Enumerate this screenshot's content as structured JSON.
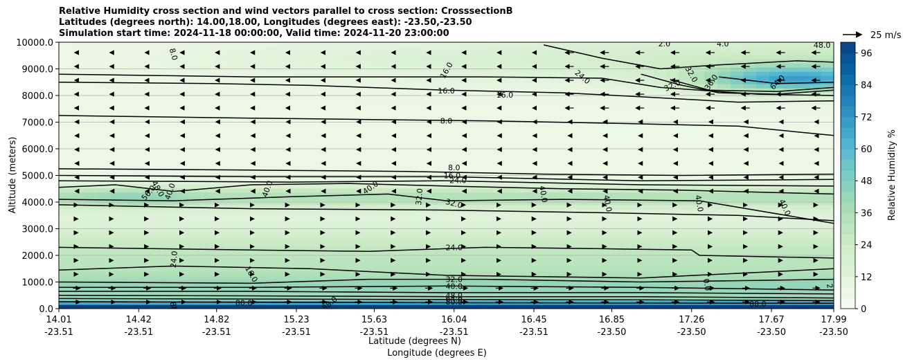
{
  "chart_data": {
    "type": "heatmap",
    "title_lines": [
      "Relative Humidity cross section and wind vectors parallel to cross section: CrosssectionB",
      "Latitudes (degrees north): 14.00,18.00, Longitudes (degrees east): -23.50,-23.50",
      "Simulation start time: 2024-11-18 00:00:00, Valid time: 2024-11-20 23:00:00"
    ],
    "ylabel": "Altitude (meters)",
    "xlabel": "Latitude (degrees N)",
    "xlabel2": "Longitude (degrees E)",
    "ylim": [
      0,
      10000
    ],
    "yticks": [
      "0.0",
      "1000.0",
      "2000.0",
      "3000.0",
      "4000.0",
      "5000.0",
      "6000.0",
      "7000.0",
      "8000.0",
      "9000.0",
      "10000.0"
    ],
    "xlim": [
      14.01,
      17.99
    ],
    "xticks": [
      {
        "lat": "14.01",
        "lon": "-23.51"
      },
      {
        "lat": "14.42",
        "lon": "-23.51"
      },
      {
        "lat": "14.82",
        "lon": "-23.51"
      },
      {
        "lat": "15.23",
        "lon": "-23.51"
      },
      {
        "lat": "15.63",
        "lon": "-23.51"
      },
      {
        "lat": "16.04",
        "lon": "-23.51"
      },
      {
        "lat": "16.45",
        "lon": "-23.51"
      },
      {
        "lat": "16.85",
        "lon": "-23.50"
      },
      {
        "lat": "17.26",
        "lon": "-23.50"
      },
      {
        "lat": "17.67",
        "lon": "-23.50"
      },
      {
        "lat": "17.99",
        "lon": "-23.50"
      }
    ],
    "colorbar": {
      "label": "Relative Humidity %",
      "range": [
        0,
        100
      ],
      "ticks": [
        "0",
        "12",
        "24",
        "36",
        "48",
        "60",
        "72",
        "84",
        "96"
      ],
      "colors": [
        "#f7fcf0",
        "#e0f3db",
        "#ccebc5",
        "#a8ddb5",
        "#7bccc4",
        "#4eb3d3",
        "#2b8cbe",
        "#0868ac",
        "#084081"
      ]
    },
    "wind_key": {
      "label": "25 m/s"
    },
    "contour_labels": [
      {
        "text": "8.0",
        "lat": 14.6,
        "alt": 9550,
        "rot": 75
      },
      {
        "text": "16.0",
        "lat": 16.0,
        "alt": 8950,
        "rot": -60
      },
      {
        "text": "16.0",
        "lat": 16.0,
        "alt": 8180,
        "rot": 0
      },
      {
        "text": "16.0",
        "lat": 16.3,
        "alt": 8020,
        "rot": 0
      },
      {
        "text": "24.0",
        "lat": 16.7,
        "alt": 8700,
        "rot": 40
      },
      {
        "text": "32.0",
        "lat": 17.16,
        "alt": 8380,
        "rot": -25
      },
      {
        "text": "32.0",
        "lat": 17.26,
        "alt": 8800,
        "rot": 60
      },
      {
        "text": "36.0",
        "lat": 17.36,
        "alt": 8500,
        "rot": -55
      },
      {
        "text": "64.0",
        "lat": 17.7,
        "alt": 8500,
        "rot": -45
      },
      {
        "text": "2.0",
        "lat": 17.12,
        "alt": 9950,
        "rot": 0
      },
      {
        "text": "4.0",
        "lat": 17.42,
        "alt": 9950,
        "rot": 0
      },
      {
        "text": "48.0",
        "lat": 17.93,
        "alt": 9900,
        "rot": 0
      },
      {
        "text": "8.0",
        "lat": 16.0,
        "alt": 7050,
        "rot": 0
      },
      {
        "text": "8.0",
        "lat": 16.04,
        "alt": 5300,
        "rot": 0
      },
      {
        "text": "16.0",
        "lat": 16.03,
        "alt": 5000,
        "rot": 0
      },
      {
        "text": "24.0",
        "lat": 16.06,
        "alt": 4820,
        "rot": 0
      },
      {
        "text": "40.0",
        "lat": 14.58,
        "alt": 4400,
        "rot": -70
      },
      {
        "text": "56.0",
        "lat": 14.47,
        "alt": 4350,
        "rot": -50
      },
      {
        "text": "48.0",
        "lat": 14.52,
        "alt": 4500,
        "rot": 60
      },
      {
        "text": "40.0",
        "lat": 15.08,
        "alt": 4500,
        "rot": -70
      },
      {
        "text": "40.0",
        "lat": 15.61,
        "alt": 4550,
        "rot": -35
      },
      {
        "text": "32.0",
        "lat": 15.86,
        "alt": 4200,
        "rot": -85
      },
      {
        "text": "32.0",
        "lat": 16.04,
        "alt": 3950,
        "rot": 15
      },
      {
        "text": "40.0",
        "lat": 16.5,
        "alt": 4300,
        "rot": 80
      },
      {
        "text": "40.0",
        "lat": 16.83,
        "alt": 3950,
        "rot": 80
      },
      {
        "text": "40.0",
        "lat": 17.3,
        "alt": 3950,
        "rot": 80
      },
      {
        "text": "40.0",
        "lat": 17.74,
        "alt": 3800,
        "rot": 65
      },
      {
        "text": "24.0",
        "lat": 14.6,
        "alt": 1850,
        "rot": -85
      },
      {
        "text": "24.0",
        "lat": 16.04,
        "alt": 2300,
        "rot": 0
      },
      {
        "text": "32.0",
        "lat": 16.04,
        "alt": 1100,
        "rot": 0
      },
      {
        "text": "40.0",
        "lat": 16.04,
        "alt": 850,
        "rot": 0
      },
      {
        "text": "48.0",
        "lat": 16.04,
        "alt": 500,
        "rot": 0
      },
      {
        "text": "64.0",
        "lat": 16.04,
        "alt": 380,
        "rot": 0
      },
      {
        "text": "80.0",
        "lat": 16.04,
        "alt": 260,
        "rot": 0
      },
      {
        "text": "16.0",
        "lat": 15.0,
        "alt": 1300,
        "rot": 60
      },
      {
        "text": "88",
        "lat": 14.6,
        "alt": 80,
        "rot": 80
      },
      {
        "text": "80.0",
        "lat": 14.96,
        "alt": 220,
        "rot": 0
      },
      {
        "text": "88.0",
        "lat": 15.4,
        "alt": 200,
        "rot": -40
      },
      {
        "text": "88.0",
        "lat": 17.6,
        "alt": 180,
        "rot": 0
      },
      {
        "text": "0.0",
        "lat": 17.34,
        "alt": 900,
        "rot": 80
      },
      {
        "text": "2",
        "lat": 17.97,
        "alt": 850,
        "rot": 80
      }
    ]
  }
}
